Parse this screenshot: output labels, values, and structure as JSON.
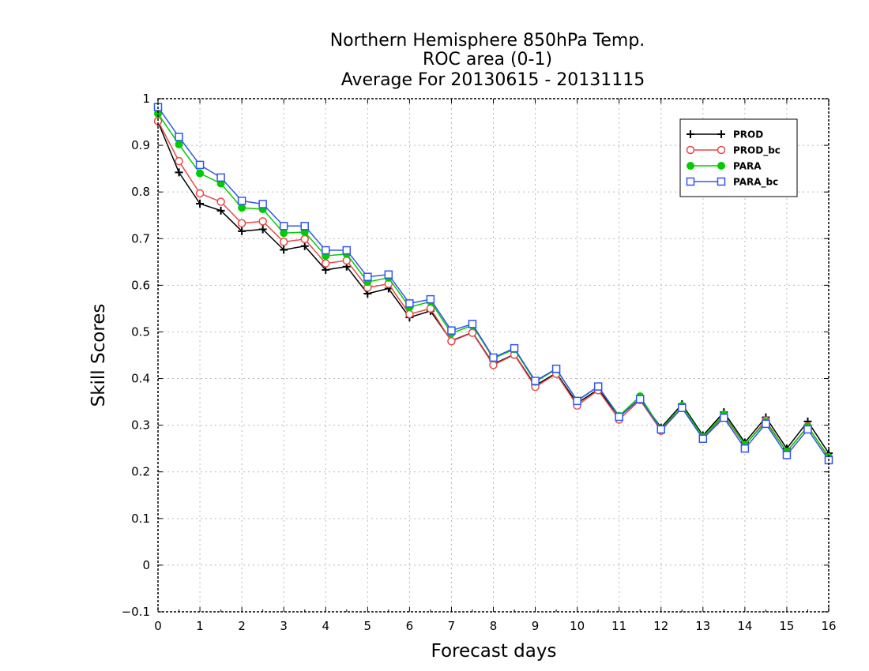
{
  "chart_data": {
    "type": "line",
    "title": [
      "Northern Hemisphere 850hPa Temp.",
      "ROC area (0-1)",
      "Average For 20130615 - 20131115"
    ],
    "xlabel": "Forecast days",
    "ylabel": "Skill Scores",
    "xlim": [
      0,
      16
    ],
    "ylim": [
      -0.1,
      1
    ],
    "grid": true,
    "legend_position": "top-right",
    "x_ticks": [
      "0",
      "1",
      "2",
      "3",
      "4",
      "5",
      "6",
      "7",
      "8",
      "9",
      "10",
      "11",
      "12",
      "13",
      "14",
      "15",
      "16"
    ],
    "y_ticks": [
      "−0.1",
      "0",
      "0.1",
      "0.2",
      "0.3",
      "0.4",
      "0.5",
      "0.6",
      "0.7",
      "0.8",
      "0.9",
      "1"
    ],
    "x": [
      0,
      0.5,
      1,
      1.5,
      2,
      2.5,
      3,
      3.5,
      4,
      4.5,
      5,
      5.5,
      6,
      6.5,
      7,
      7.5,
      8,
      8.5,
      9,
      9.5,
      10,
      10.5,
      11,
      11.5,
      12,
      12.5,
      13,
      13.5,
      14,
      14.5,
      15,
      15.5,
      16
    ],
    "series": [
      {
        "name": "PROD",
        "color": "#000000",
        "marker": "plus",
        "values": [
          0.95,
          0.842,
          0.775,
          0.76,
          0.716,
          0.72,
          0.676,
          0.684,
          0.633,
          0.64,
          0.582,
          0.593,
          0.531,
          0.545,
          0.481,
          0.499,
          0.431,
          0.452,
          0.385,
          0.412,
          0.347,
          0.377,
          0.318,
          0.357,
          0.295,
          0.345,
          0.278,
          0.328,
          0.263,
          0.317,
          0.25,
          0.308,
          0.24
        ]
      },
      {
        "name": "PROD_bc",
        "color": "#e84848",
        "marker": "circle-open",
        "values": [
          0.952,
          0.866,
          0.797,
          0.779,
          0.733,
          0.737,
          0.693,
          0.699,
          0.647,
          0.653,
          0.595,
          0.603,
          0.538,
          0.55,
          0.48,
          0.498,
          0.429,
          0.451,
          0.382,
          0.41,
          0.342,
          0.375,
          0.312,
          0.354,
          0.288,
          0.337,
          0.272,
          0.32,
          0.257,
          0.31,
          0.243,
          0.298,
          0.23
        ]
      },
      {
        "name": "PARA",
        "color": "#00cc00",
        "marker": "circle-filled",
        "values": [
          0.968,
          0.902,
          0.84,
          0.818,
          0.766,
          0.763,
          0.712,
          0.714,
          0.663,
          0.667,
          0.607,
          0.616,
          0.553,
          0.565,
          0.497,
          0.514,
          0.443,
          0.463,
          0.393,
          0.42,
          0.353,
          0.383,
          0.32,
          0.362,
          0.292,
          0.342,
          0.275,
          0.323,
          0.258,
          0.307,
          0.243,
          0.297,
          0.232
        ]
      },
      {
        "name": "PARA_bc",
        "color": "#3355ee",
        "marker": "square-open",
        "values": [
          0.982,
          0.918,
          0.858,
          0.831,
          0.781,
          0.774,
          0.727,
          0.727,
          0.675,
          0.675,
          0.618,
          0.623,
          0.561,
          0.57,
          0.503,
          0.517,
          0.445,
          0.465,
          0.395,
          0.421,
          0.352,
          0.383,
          0.318,
          0.356,
          0.291,
          0.337,
          0.271,
          0.316,
          0.25,
          0.303,
          0.236,
          0.291,
          0.225
        ]
      }
    ]
  }
}
